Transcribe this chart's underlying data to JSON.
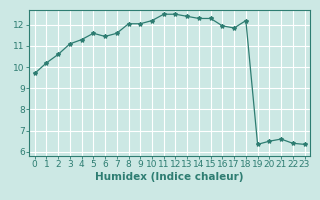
{
  "x": [
    0,
    1,
    2,
    3,
    4,
    5,
    6,
    7,
    8,
    9,
    10,
    11,
    12,
    13,
    14,
    15,
    16,
    17,
    18,
    19,
    20,
    21,
    22,
    23
  ],
  "y": [
    9.7,
    10.2,
    10.6,
    11.1,
    11.3,
    11.6,
    11.45,
    11.6,
    12.05,
    12.05,
    12.2,
    12.5,
    12.5,
    12.4,
    12.3,
    12.3,
    11.95,
    11.85,
    12.2,
    6.35,
    6.5,
    6.6,
    6.4,
    6.35
  ],
  "line_color": "#2e7d72",
  "marker": "*",
  "marker_size": 3,
  "bg_color": "#cce8e4",
  "grid_color": "#ffffff",
  "xlabel": "Humidex (Indice chaleur)",
  "ylabel": "",
  "title": "",
  "xlim": [
    -0.5,
    23.5
  ],
  "ylim": [
    5.8,
    12.7
  ],
  "yticks": [
    6,
    7,
    8,
    9,
    10,
    11,
    12
  ],
  "xticks": [
    0,
    1,
    2,
    3,
    4,
    5,
    6,
    7,
    8,
    9,
    10,
    11,
    12,
    13,
    14,
    15,
    16,
    17,
    18,
    19,
    20,
    21,
    22,
    23
  ],
  "tick_label_fontsize": 6.5,
  "xlabel_fontsize": 7.5
}
